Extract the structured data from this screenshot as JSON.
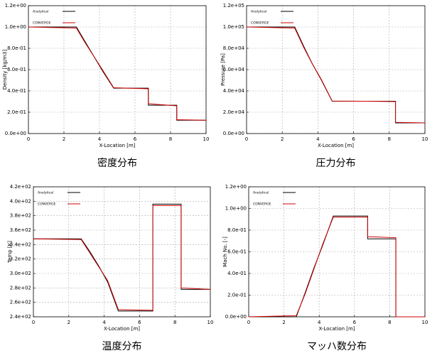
{
  "chart_data": [
    {
      "type": "line",
      "title": "密度分布",
      "x_label": "X-Location [m]",
      "y_label": "Density [kg/m3]",
      "x": [
        0,
        2.7,
        3.2,
        3.7,
        4.2,
        4.8,
        6.75,
        6.75,
        8.35,
        8.35,
        10
      ],
      "series": [
        {
          "name": "Analytical",
          "color": "#000000",
          "values": [
            1,
            1,
            0.86,
            0.72,
            0.58,
            0.426,
            0.426,
            0.266,
            0.266,
            0.125,
            0.125
          ]
        },
        {
          "name": "CONVERGE",
          "color": "#d00000",
          "values": [
            1,
            0.99,
            0.85,
            0.72,
            0.59,
            0.43,
            0.42,
            0.28,
            0.26,
            0.13,
            0.125
          ]
        }
      ],
      "xlim": [
        0,
        10
      ],
      "xticks": [
        0,
        2,
        4,
        6,
        8,
        10
      ],
      "ylim": [
        0,
        1.2
      ],
      "yticks": [
        {
          "value": 0,
          "label": "0.0e+00"
        },
        {
          "value": 0.2,
          "label": "2.0e-01"
        },
        {
          "value": 0.4,
          "label": "4.0e-01"
        },
        {
          "value": 0.6,
          "label": "6.0e-01"
        },
        {
          "value": 0.8,
          "label": "8.0e-01"
        },
        {
          "value": 1.0,
          "label": "1.0e+00"
        },
        {
          "value": 1.2,
          "label": "1.2e+00"
        }
      ],
      "grid": true,
      "legend": "top-left"
    },
    {
      "type": "line",
      "title": "圧力分布",
      "x_label": "X-Location [m]",
      "y_label": "Pressure [Pa]",
      "x": [
        0,
        2.7,
        3.2,
        3.7,
        4.2,
        4.8,
        6.75,
        6.75,
        8.35,
        8.35,
        10
      ],
      "series": [
        {
          "name": "Analytical",
          "color": "#000000",
          "values": [
            100000,
            100000,
            82000,
            65000,
            50000,
            30300,
            30300,
            30300,
            30300,
            10000,
            10000
          ]
        },
        {
          "name": "CONVERGE",
          "color": "#d00000",
          "values": [
            100000,
            99000,
            81000,
            65000,
            50500,
            30500,
            30300,
            30300,
            30000,
            10500,
            10000
          ]
        }
      ],
      "xlim": [
        0,
        10
      ],
      "xticks": [
        0,
        2,
        4,
        6,
        8,
        10
      ],
      "ylim": [
        0,
        120000
      ],
      "yticks": [
        {
          "value": 0,
          "label": "0.0e+00"
        },
        {
          "value": 20000,
          "label": "2.0e+04"
        },
        {
          "value": 40000,
          "label": "4.0e+04"
        },
        {
          "value": 60000,
          "label": "6.0e+04"
        },
        {
          "value": 80000,
          "label": "8.0e+04"
        },
        {
          "value": 100000,
          "label": "1.0e+05"
        },
        {
          "value": 120000,
          "label": "1.2e+05"
        }
      ],
      "grid": true,
      "legend": "top-left"
    },
    {
      "type": "line",
      "title": "温度分布",
      "x_label": "X-Location [m]",
      "y_label": "Temp [K]",
      "x": [
        0,
        2.7,
        3.2,
        3.7,
        4.2,
        4.8,
        6.75,
        6.75,
        8.35,
        8.35,
        10
      ],
      "series": [
        {
          "name": "Analytical",
          "color": "#000000",
          "values": [
            348,
            348,
            330,
            310,
            288,
            248,
            248,
            396,
            396,
            278,
            278
          ]
        },
        {
          "name": "CONVERGE",
          "color": "#d00000",
          "values": [
            348,
            347,
            328,
            309,
            290,
            250,
            249,
            394,
            394,
            280,
            278
          ]
        }
      ],
      "xlim": [
        0,
        10
      ],
      "xticks": [
        0,
        2,
        4,
        6,
        8,
        10
      ],
      "ylim": [
        240,
        420
      ],
      "yticks": [
        {
          "value": 240,
          "label": "2.4e+02"
        },
        {
          "value": 260,
          "label": "2.6e+02"
        },
        {
          "value": 280,
          "label": "2.8e+02"
        },
        {
          "value": 300,
          "label": "3.0e+02"
        },
        {
          "value": 320,
          "label": "3.2e+02"
        },
        {
          "value": 340,
          "label": "3.4e+02"
        },
        {
          "value": 360,
          "label": "3.6e+02"
        },
        {
          "value": 380,
          "label": "3.8e+02"
        },
        {
          "value": 400,
          "label": "4.0e+02"
        },
        {
          "value": 420,
          "label": "4.2e+02"
        }
      ],
      "grid": true,
      "legend": "top-left"
    },
    {
      "type": "line",
      "title": "マッハ数分布",
      "x_label": "X-Location [m]",
      "y_label": "Mach No. [-]",
      "x": [
        0,
        2.7,
        3.2,
        3.7,
        4.2,
        4.8,
        6.75,
        6.75,
        8.35,
        8.35,
        10
      ],
      "series": [
        {
          "name": "Analytical",
          "color": "#000000",
          "values": [
            0,
            0,
            0.22,
            0.45,
            0.66,
            0.93,
            0.93,
            0.72,
            0.72,
            0,
            0
          ]
        },
        {
          "name": "CONVERGE",
          "color": "#d00000",
          "values": [
            0,
            0.01,
            0.21,
            0.44,
            0.67,
            0.92,
            0.92,
            0.74,
            0.73,
            0,
            0
          ]
        }
      ],
      "xlim": [
        0,
        10
      ],
      "xticks": [
        0,
        2,
        4,
        6,
        8,
        10
      ],
      "ylim": [
        0,
        1.2
      ],
      "yticks": [
        {
          "value": 0,
          "label": "0.0e+00"
        },
        {
          "value": 0.2,
          "label": "2.0e-01"
        },
        {
          "value": 0.4,
          "label": "4.0e-01"
        },
        {
          "value": 0.6,
          "label": "6.0e-01"
        },
        {
          "value": 0.8,
          "label": "8.0e-01"
        },
        {
          "value": 1.0,
          "label": "1.0e+00"
        },
        {
          "value": 1.2,
          "label": "1.2e+00"
        }
      ],
      "grid": true,
      "legend": "top-left"
    }
  ]
}
